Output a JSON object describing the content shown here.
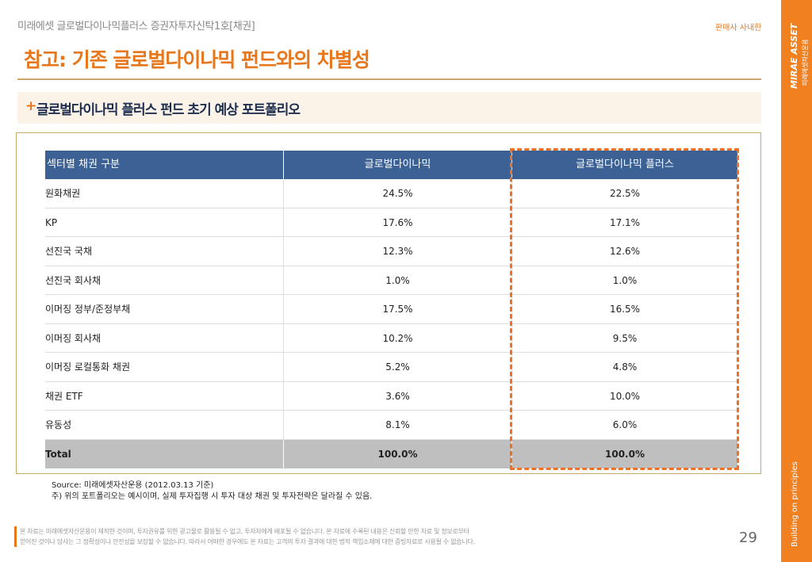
{
  "header": {
    "doc_title": "미래에셋 글로벌다이나믹플러스 증권자투자신탁1호[채권]",
    "badge": "판매사 사내한",
    "title": "참고: 기존 글로벌다이나믹 펀드와의 차별성"
  },
  "section": {
    "marker": "+",
    "title": "글로벌다이나믹 플러스 펀드 초기 예상 포트폴리오"
  },
  "table": {
    "columns": [
      "섹터별 채권 구분",
      "글로벌다이나믹",
      "글로벌다이나믹 플러스"
    ],
    "rows": [
      [
        "원화채권",
        "24.5%",
        "22.5%"
      ],
      [
        "KP",
        "17.6%",
        "17.1%"
      ],
      [
        "선진국 국채",
        "12.3%",
        "12.6%"
      ],
      [
        "선진국 회사채",
        "1.0%",
        "1.0%"
      ],
      [
        "이머징 정부/준정부채",
        "17.5%",
        "16.5%"
      ],
      [
        "이머징 회사채",
        "10.2%",
        "9.5%"
      ],
      [
        "이머징 로컬통화 채권",
        "5.2%",
        "4.8%"
      ],
      [
        "채권 ETF",
        "3.6%",
        "10.0%"
      ],
      [
        "유동성",
        "8.1%",
        "6.0%"
      ]
    ],
    "total": [
      "Total",
      "100.0%",
      "100.0%"
    ]
  },
  "notes": [
    "Source: 미래에셋자산운용 (2012.03.13 기준)",
    "주) 위의 포트폴리오는 예시이며, 실제 투자집행 시 투자 대상 채권 및 투자전략은 달라질 수 있음."
  ],
  "footer": {
    "disclaimer": [
      "본 자료는 미래에셋자산운용이 제작한 것이며, 투자권유를 위한 광고물로 활용될 수 없고, 투자자에게 배포될 수 없습니다. 본 자료에 수록된 내용은 신뢰할 만한 자료 및 정보로부터",
      "얻어진 것이나 당사는 그 정확성이나 안전성을 보장할 수 없습니다. 따라서 어떠한 경우에도 본 자료는 고객의 투자 결과에 대한 법적 책임소재에 대한 증빙자료로 사용될 수 없습니다."
    ],
    "page": "29"
  },
  "sidebar": {
    "logo": "MIRAE ASSET",
    "logo_sub": "미래에셋자산운용",
    "slogan": "Building on principles"
  }
}
